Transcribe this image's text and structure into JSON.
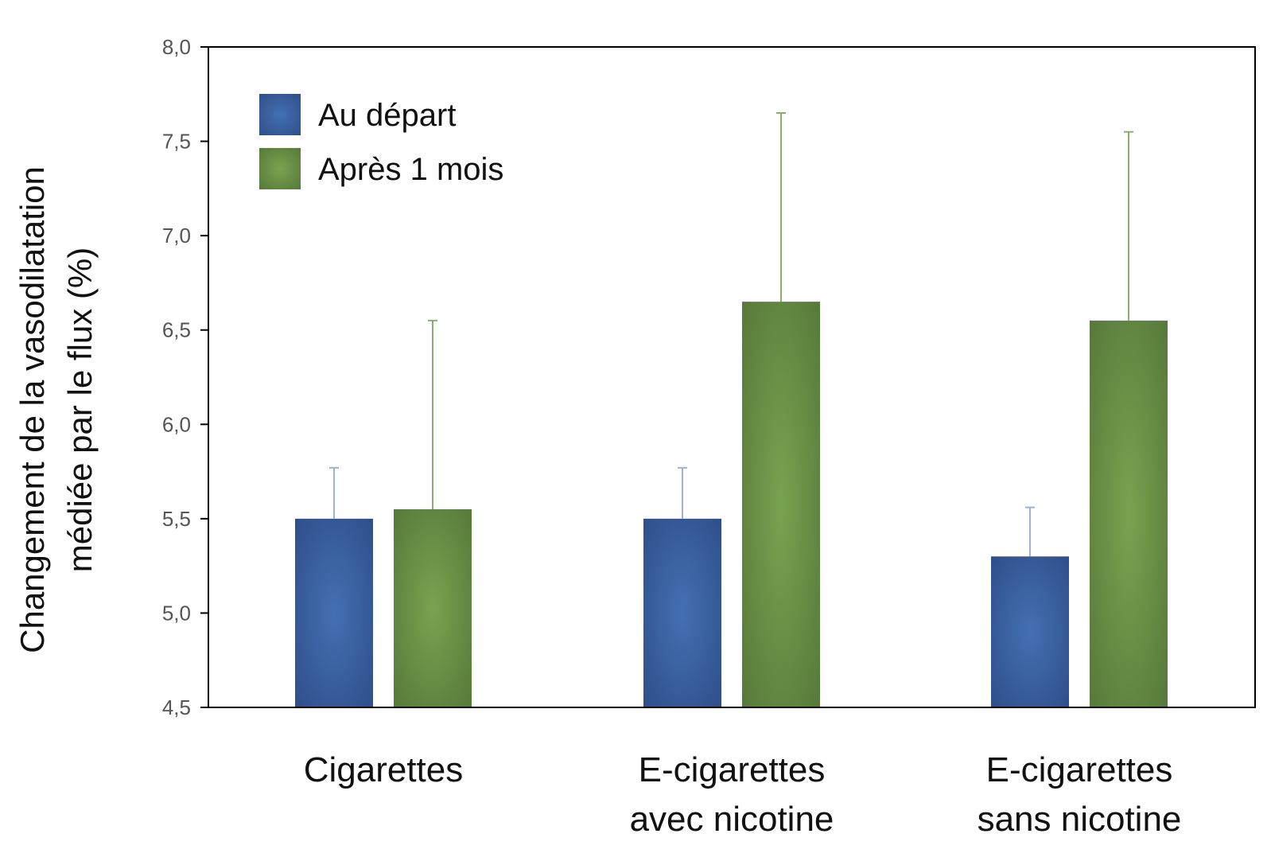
{
  "chart_data": {
    "type": "bar",
    "title": "",
    "xlabel": "",
    "ylabel_lines": [
      "Changement de la vasodilatation",
      "médiée par le flux (%)"
    ],
    "categories": [
      [
        "Cigarettes"
      ],
      [
        "E-cigarettes",
        "avec nicotine"
      ],
      [
        "E-cigarettes",
        "sans nicotine"
      ]
    ],
    "series": [
      {
        "name": "Au départ",
        "values": [
          5.5,
          5.5,
          5.3
        ],
        "error_upper": [
          5.77,
          5.77,
          5.56
        ],
        "color": "#3c62a6",
        "error_color": "#9fb1d4"
      },
      {
        "name": "Après 1 mois",
        "values": [
          5.55,
          6.65,
          6.55
        ],
        "error_upper": [
          6.55,
          7.65,
          7.55
        ],
        "color": "#6b9447",
        "error_color": "#8cae6c"
      }
    ],
    "ylim": [
      4.5,
      8.0
    ],
    "yticks": [
      "4,5",
      "5,0",
      "5,5",
      "6,0",
      "6,5",
      "7,0",
      "7,5",
      "8,0"
    ],
    "ytick_values": [
      4.5,
      5.0,
      5.5,
      6.0,
      6.5,
      7.0,
      7.5,
      8.0
    ],
    "grid": false,
    "legend_position": "top-left"
  }
}
